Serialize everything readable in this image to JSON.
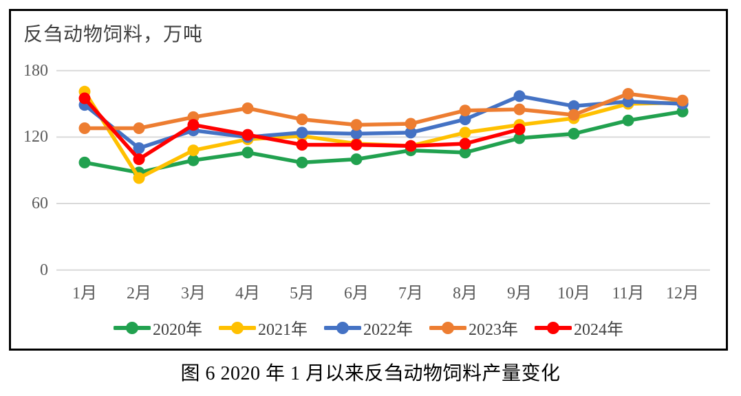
{
  "chart_title": "反刍动物饲料，万吨",
  "caption": "图 6 2020 年 1 月以来反刍动物饲料产量变化",
  "colors": {
    "gridline": "#D9D9D9",
    "axis_text": "#595959",
    "legend_text": "#404040",
    "title_text": "#404040",
    "frame_border": "#000000"
  },
  "chart_data": {
    "type": "line",
    "title": "反刍动物饲料，万吨",
    "unit": "万吨",
    "categories": [
      "1月",
      "2月",
      "3月",
      "4月",
      "5月",
      "6月",
      "7月",
      "8月",
      "9月",
      "10月",
      "11月",
      "12月"
    ],
    "y_ticks": [
      0,
      60,
      120,
      180
    ],
    "ylim": [
      0,
      180
    ],
    "grid": true,
    "legend_position": "bottom",
    "series": [
      {
        "name": "2020年",
        "color": "#21A14F",
        "values": [
          97,
          88,
          99,
          106,
          97,
          100,
          108,
          106,
          119,
          123,
          135,
          143
        ]
      },
      {
        "name": "2021年",
        "color": "#FFC000",
        "values": [
          161,
          83,
          108,
          118,
          121,
          114,
          112,
          124,
          131,
          137,
          150,
          151
        ]
      },
      {
        "name": "2022年",
        "color": "#4472C4",
        "values": [
          149,
          110,
          126,
          120,
          124,
          123,
          124,
          136,
          157,
          148,
          152,
          150
        ]
      },
      {
        "name": "2023年",
        "color": "#ED7D31",
        "values": [
          128,
          128,
          138,
          146,
          136,
          131,
          132,
          144,
          145,
          140,
          159,
          153
        ]
      },
      {
        "name": "2024年",
        "color": "#FF0000",
        "values": [
          155,
          100,
          131,
          122,
          113,
          113,
          112,
          114,
          127,
          null,
          null,
          null
        ]
      }
    ]
  }
}
